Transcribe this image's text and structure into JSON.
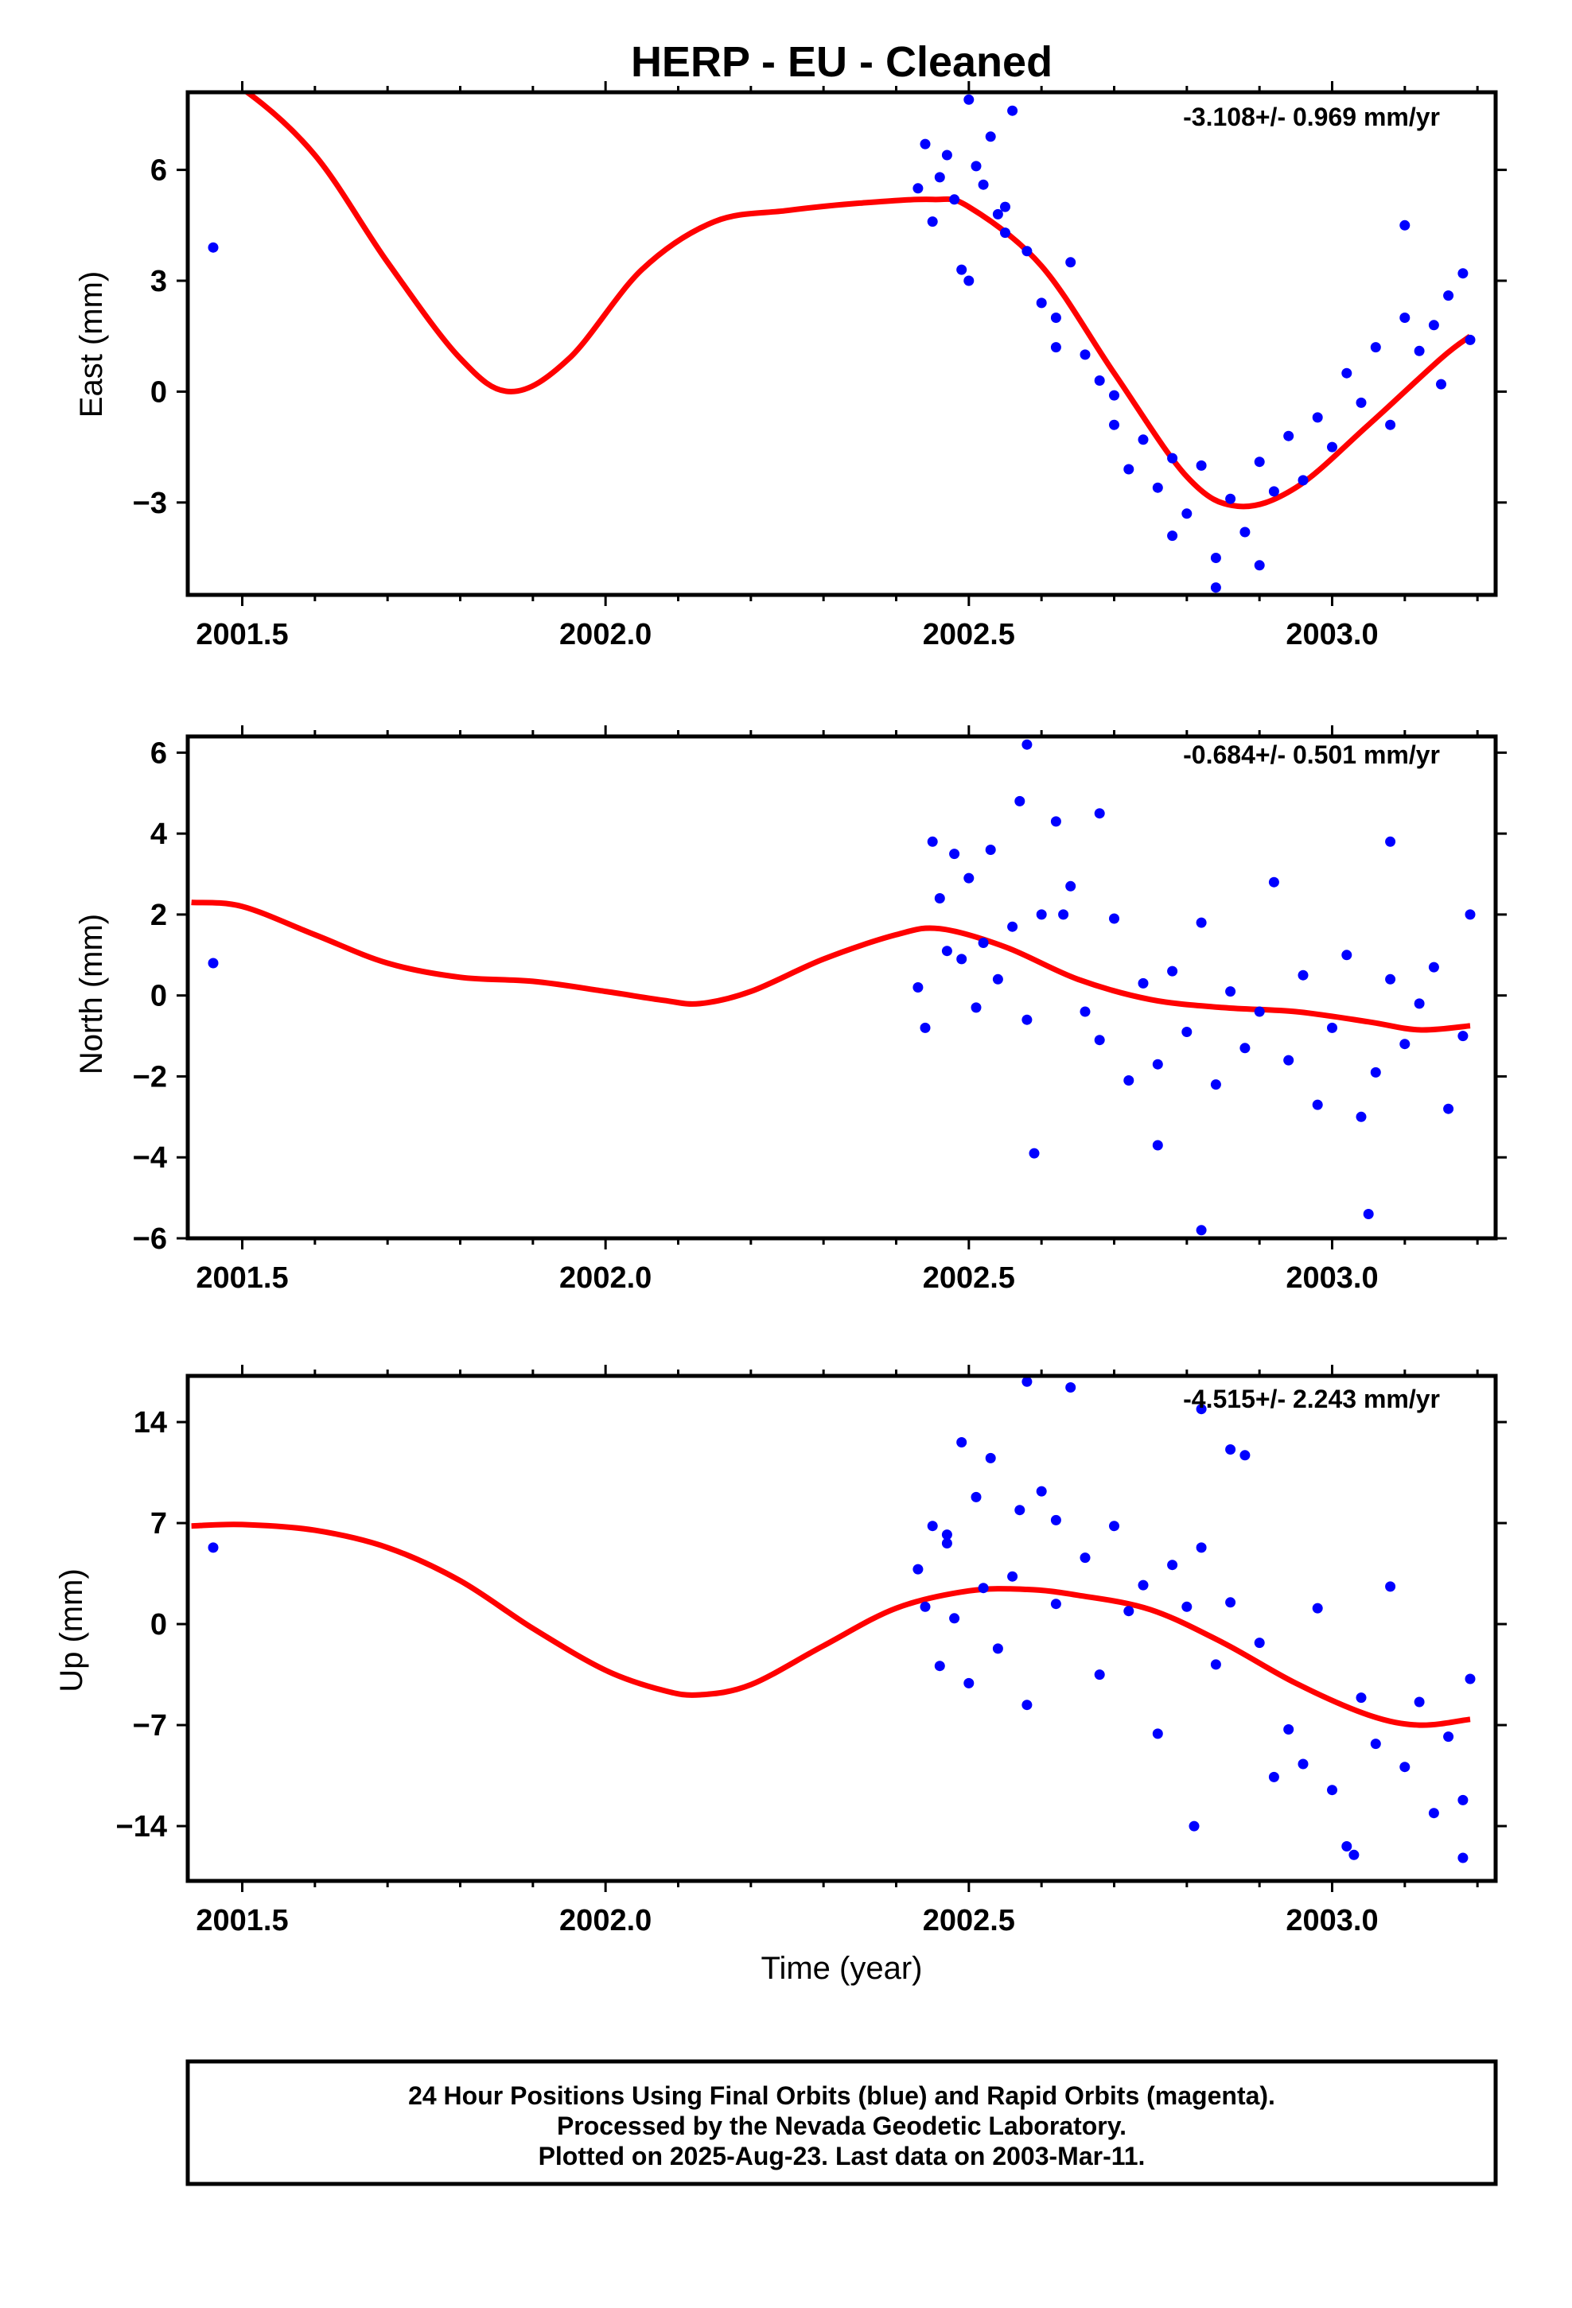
{
  "title": "HERP  - EU - Cleaned",
  "footer": {
    "lines": [
      "24 Hour Positions Using Final Orbits (blue) and Rapid Orbits (magenta).",
      "Processed by the Nevada Geodetic Laboratory.",
      "Plotted on 2025-Aug-23. Last data on 2003-Mar-11."
    ]
  },
  "colors": {
    "data_points": "#0000ff",
    "model_fit": "#ff0000",
    "frame": "#000000"
  },
  "chart_data": [
    {
      "type": "scatter",
      "name": "east",
      "title": "",
      "ylabel": "East (mm)",
      "xlabel": "",
      "rate_label": "-3.108+/- 0.969 mm/yr",
      "xlim": [
        2001.425,
        2003.225
      ],
      "ylim": [
        -5.5,
        8.1
      ],
      "xticks": [
        2001.5,
        2002.0,
        2002.5,
        2003.0
      ],
      "xtick_labels": [
        "2001.5",
        "2002.0",
        "2002.5",
        "2003.0"
      ],
      "yticks": [
        -3,
        0,
        3,
        6
      ],
      "ytick_labels": [
        "−3",
        "0",
        "3",
        "6"
      ],
      "grid": false,
      "series": [
        {
          "role": "observations",
          "x": [
            2001.46,
            2002.43,
            2002.44,
            2002.45,
            2002.46,
            2002.47,
            2002.48,
            2002.49,
            2002.5,
            2002.51,
            2002.52,
            2002.53,
            2002.54,
            2002.55,
            2002.56,
            2002.58,
            2002.6,
            2002.62,
            2002.64,
            2002.66,
            2002.68,
            2002.7,
            2002.72,
            2002.74,
            2002.76,
            2002.78,
            2002.8,
            2002.82,
            2002.84,
            2002.86,
            2002.88,
            2002.9,
            2002.92,
            2002.94,
            2002.96,
            2002.98,
            2003.0,
            2003.02,
            2003.04,
            2003.06,
            2003.08,
            2003.1,
            2003.12,
            2003.14,
            2003.16,
            2003.18,
            2003.19,
            2002.5,
            2002.55,
            2002.62,
            2002.7,
            2002.78,
            2002.84,
            2002.9,
            2003.1,
            2003.15
          ],
          "y": [
            3.9,
            5.5,
            6.7,
            4.6,
            5.8,
            6.4,
            5.2,
            3.3,
            7.9,
            6.1,
            5.6,
            6.9,
            4.8,
            5.0,
            7.6,
            3.8,
            2.4,
            2.0,
            3.5,
            1.0,
            0.3,
            -0.9,
            -2.1,
            -1.3,
            -2.6,
            -1.8,
            -3.3,
            -2.0,
            -4.5,
            -2.9,
            -3.8,
            -1.9,
            -2.7,
            -1.2,
            -2.4,
            -0.7,
            -1.5,
            0.5,
            -0.3,
            1.2,
            -0.9,
            2.0,
            1.1,
            1.8,
            2.6,
            3.2,
            1.4,
            3.0,
            4.3,
            1.2,
            -0.1,
            -3.9,
            -5.3,
            -4.7,
            4.5,
            0.2
          ]
        },
        {
          "role": "model_fit",
          "x": [
            2001.43,
            2001.5,
            2001.6,
            2001.7,
            2001.8,
            2001.87,
            2001.95,
            2002.05,
            2002.15,
            2002.25,
            2002.35,
            2002.45,
            2002.5,
            2002.6,
            2002.7,
            2002.8,
            2002.87,
            2002.95,
            2003.05,
            2003.15,
            2003.19
          ],
          "y": [
            8.8,
            8.2,
            6.4,
            3.5,
            0.9,
            0.0,
            0.9,
            3.3,
            4.6,
            4.9,
            5.1,
            5.2,
            5.0,
            3.4,
            0.5,
            -2.3,
            -3.1,
            -2.6,
            -0.9,
            0.9,
            1.5
          ]
        }
      ]
    },
    {
      "type": "scatter",
      "name": "north",
      "title": "",
      "ylabel": "North (mm)",
      "xlabel": "",
      "rate_label": "-0.684+/- 0.501 mm/yr",
      "xlim": [
        2001.425,
        2003.225
      ],
      "ylim": [
        -6.0,
        6.4
      ],
      "xticks": [
        2001.5,
        2002.0,
        2002.5,
        2003.0
      ],
      "xtick_labels": [
        "2001.5",
        "2002.0",
        "2002.5",
        "2003.0"
      ],
      "yticks": [
        -6,
        -4,
        -2,
        0,
        2,
        4,
        6
      ],
      "ytick_labels": [
        "−6",
        "−4",
        "−2",
        "0",
        "2",
        "4",
        "6"
      ],
      "grid": false,
      "series": [
        {
          "role": "observations",
          "x": [
            2001.46,
            2002.43,
            2002.44,
            2002.45,
            2002.46,
            2002.47,
            2002.48,
            2002.49,
            2002.5,
            2002.51,
            2002.52,
            2002.53,
            2002.54,
            2002.56,
            2002.57,
            2002.58,
            2002.6,
            2002.62,
            2002.64,
            2002.66,
            2002.68,
            2002.7,
            2002.72,
            2002.74,
            2002.76,
            2002.78,
            2002.8,
            2002.82,
            2002.84,
            2002.86,
            2002.88,
            2002.9,
            2002.92,
            2002.94,
            2002.96,
            2002.98,
            2003.0,
            2003.02,
            2003.04,
            2003.06,
            2003.08,
            2003.1,
            2003.12,
            2003.14,
            2003.16,
            2003.18,
            2003.19,
            2002.58,
            2002.59,
            2002.63,
            2002.68,
            2002.82,
            2003.05,
            2003.08,
            2002.76
          ],
          "y": [
            0.8,
            0.2,
            -0.8,
            3.8,
            2.4,
            1.1,
            3.5,
            0.9,
            2.9,
            -0.3,
            1.3,
            3.6,
            0.4,
            1.7,
            4.8,
            -0.6,
            2.0,
            4.3,
            2.7,
            -0.4,
            -1.1,
            1.9,
            -2.1,
            0.3,
            -1.7,
            0.6,
            -0.9,
            1.8,
            -2.2,
            0.1,
            -1.3,
            -0.4,
            2.8,
            -1.6,
            0.5,
            -2.7,
            -0.8,
            1.0,
            -3.0,
            -1.9,
            0.4,
            -1.2,
            -0.2,
            0.7,
            -2.8,
            -1.0,
            2.0,
            6.2,
            -3.9,
            2.0,
            4.5,
            -5.8,
            -5.4,
            3.8,
            -3.7
          ]
        },
        {
          "role": "model_fit",
          "x": [
            2001.43,
            2001.5,
            2001.6,
            2001.7,
            2001.8,
            2001.9,
            2002.0,
            2002.08,
            2002.13,
            2002.2,
            2002.3,
            2002.4,
            2002.46,
            2002.55,
            2002.65,
            2002.75,
            2002.85,
            2002.95,
            2003.05,
            2003.12,
            2003.19
          ],
          "y": [
            2.3,
            2.2,
            1.5,
            0.8,
            0.45,
            0.35,
            0.1,
            -0.12,
            -0.2,
            0.1,
            0.9,
            1.5,
            1.65,
            1.2,
            0.4,
            -0.1,
            -0.3,
            -0.4,
            -0.65,
            -0.85,
            -0.75
          ]
        }
      ]
    },
    {
      "type": "scatter",
      "name": "up",
      "title": "",
      "ylabel": "Up (mm)",
      "xlabel": "Time (year)",
      "rate_label": "-4.515+/- 2.243 mm/yr",
      "xlim": [
        2001.425,
        2003.225
      ],
      "ylim": [
        -17.8,
        17.2
      ],
      "xticks": [
        2001.5,
        2002.0,
        2002.5,
        2003.0
      ],
      "xtick_labels": [
        "2001.5",
        "2002.0",
        "2002.5",
        "2003.0"
      ],
      "yticks": [
        -14,
        -7,
        0,
        7,
        14
      ],
      "ytick_labels": [
        "−14",
        "−7",
        "0",
        "7",
        "14"
      ],
      "grid": false,
      "series": [
        {
          "role": "observations",
          "x": [
            2001.46,
            2002.43,
            2002.44,
            2002.45,
            2002.46,
            2002.47,
            2002.48,
            2002.49,
            2002.5,
            2002.51,
            2002.52,
            2002.53,
            2002.54,
            2002.56,
            2002.57,
            2002.58,
            2002.6,
            2002.62,
            2002.64,
            2002.66,
            2002.68,
            2002.7,
            2002.72,
            2002.74,
            2002.76,
            2002.78,
            2002.8,
            2002.82,
            2002.84,
            2002.86,
            2002.88,
            2002.9,
            2002.92,
            2002.94,
            2002.96,
            2002.98,
            2003.0,
            2003.02,
            2003.04,
            2003.06,
            2003.08,
            2003.1,
            2003.12,
            2003.14,
            2003.16,
            2003.18,
            2003.19,
            2002.58,
            2002.62,
            2002.81,
            2002.86,
            2002.82,
            2003.03,
            2003.18,
            2002.47
          ],
          "y": [
            5.3,
            3.8,
            1.2,
            6.8,
            -2.9,
            5.6,
            0.4,
            12.6,
            -4.1,
            8.8,
            2.5,
            11.5,
            -1.7,
            3.3,
            7.9,
            -5.6,
            9.2,
            1.4,
            16.4,
            4.6,
            -3.5,
            6.8,
            0.9,
            2.7,
            -7.6,
            4.1,
            1.2,
            14.9,
            -2.8,
            1.5,
            11.7,
            -1.3,
            -10.6,
            -7.3,
            -9.7,
            1.1,
            -11.5,
            -15.4,
            -5.1,
            -8.3,
            2.6,
            -9.9,
            -5.4,
            -13.1,
            -7.8,
            -16.2,
            -3.8,
            16.8,
            7.2,
            -14.0,
            12.1,
            5.3,
            -16.0,
            -12.2,
            6.2
          ]
        },
        {
          "role": "model_fit",
          "x": [
            2001.43,
            2001.5,
            2001.6,
            2001.7,
            2001.8,
            2001.9,
            2002.0,
            2002.08,
            2002.13,
            2002.2,
            2002.3,
            2002.4,
            2002.5,
            2002.58,
            2002.65,
            2002.75,
            2002.85,
            2002.95,
            2003.05,
            2003.12,
            2003.19
          ],
          "y": [
            6.8,
            6.9,
            6.5,
            5.3,
            3.0,
            -0.3,
            -3.2,
            -4.6,
            -4.9,
            -4.2,
            -1.5,
            1.1,
            2.3,
            2.4,
            2.0,
            1.0,
            -1.3,
            -4.1,
            -6.3,
            -7.0,
            -6.6
          ]
        }
      ]
    }
  ]
}
